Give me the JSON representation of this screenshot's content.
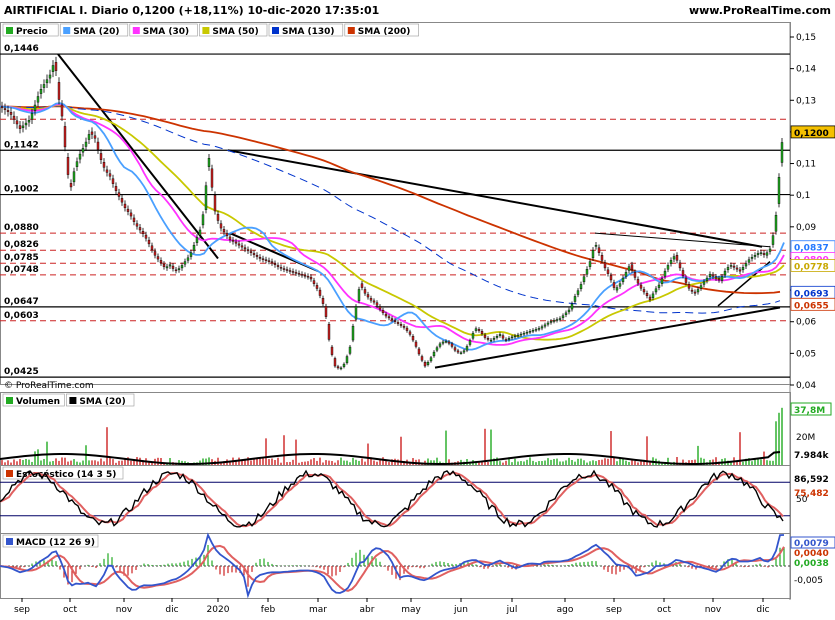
{
  "header": {
    "title": "AIRTIFICIAL I. Diario 0,1200 (+18,11%) 10-dic-2020 17:35:01",
    "site": "www.ProRealTime.com"
  },
  "watermark": "© ProRealTime.com",
  "legend_main": [
    {
      "label": "Precio",
      "color": "#22aa22"
    },
    {
      "label": "SMA (20)",
      "color": "#4aa0ff"
    },
    {
      "label": "SMA (30)",
      "color": "#ff33ff"
    },
    {
      "label": "SMA (50)",
      "color": "#c8c800"
    },
    {
      "label": "SMA (130)",
      "color": "#0033cc"
    },
    {
      "label": "SMA (200)",
      "color": "#cc3300"
    }
  ],
  "legend_volume": [
    {
      "label": "Volumen",
      "color": "#22aa22"
    },
    {
      "label": "SMA (20)",
      "color": "#000000"
    }
  ],
  "legend_stoch": [
    {
      "label": "Estocástico (14 3 5)",
      "color": "#cc3300"
    }
  ],
  "legend_macd": [
    {
      "label": "MACD (12 26 9)",
      "color": "#3355cc"
    }
  ],
  "chart_data": [
    {
      "type": "line",
      "panel": "price",
      "x_labels": [
        "sep",
        "oct",
        "nov",
        "dic",
        "2020",
        "feb",
        "mar",
        "abr",
        "may",
        "jun",
        "jul",
        "ago",
        "sep",
        "oct",
        "nov",
        "dic"
      ],
      "ylim": [
        0.04,
        0.155
      ],
      "yticks": [
        "0,15",
        "0,14",
        "0,13",
        "0,12",
        "0,11",
        "0,1",
        "0,09",
        "0,08",
        "0,07",
        "0,06",
        "0,05",
        "0,04"
      ],
      "level_labels": [
        "0,1446",
        "0,1142",
        "0,1002",
        "0,0880",
        "0,0826",
        "0,0785",
        "0,0748",
        "0,0647",
        "0,0603",
        "0,0425"
      ],
      "solid_levels": [
        0.1446,
        0.1142,
        0.1002,
        0.0647,
        0.0425
      ],
      "dashed_levels": [
        0.124,
        0.088,
        0.0826,
        0.0785,
        0.0748,
        0.0603
      ],
      "last_price": 0.12,
      "badges": [
        {
          "text": "0,1200",
          "value": 0.12,
          "color": "#f4c000",
          "fg": "#000000"
        },
        {
          "text": "0,0837",
          "value": 0.0837,
          "color": "#ffffff",
          "fg": "#2277ff"
        },
        {
          "text": "0,0800",
          "value": 0.08,
          "color": "#ffffff",
          "fg": "#ff33ff"
        },
        {
          "text": "0,0778",
          "value": 0.0778,
          "color": "#ffffff",
          "fg": "#c8a800"
        },
        {
          "text": "0,0693",
          "value": 0.0693,
          "color": "#ffffff",
          "fg": "#0033cc"
        },
        {
          "text": "0,0655",
          "value": 0.0655,
          "color": "#ffffff",
          "fg": "#cc3300"
        }
      ],
      "price_path": [
        [
          0,
          0.128
        ],
        [
          10,
          0.126
        ],
        [
          20,
          0.121
        ],
        [
          30,
          0.124
        ],
        [
          40,
          0.133
        ],
        [
          50,
          0.138
        ],
        [
          55,
          0.143
        ],
        [
          58,
          0.132
        ],
        [
          62,
          0.125
        ],
        [
          66,
          0.112
        ],
        [
          70,
          0.101
        ],
        [
          75,
          0.109
        ],
        [
          80,
          0.113
        ],
        [
          85,
          0.116
        ],
        [
          90,
          0.12
        ],
        [
          95,
          0.118
        ],
        [
          100,
          0.112
        ],
        [
          105,
          0.108
        ],
        [
          110,
          0.106
        ],
        [
          115,
          0.102
        ],
        [
          120,
          0.099
        ],
        [
          125,
          0.096
        ],
        [
          130,
          0.094
        ],
        [
          135,
          0.091
        ],
        [
          140,
          0.089
        ],
        [
          145,
          0.087
        ],
        [
          150,
          0.084
        ],
        [
          155,
          0.081
        ],
        [
          160,
          0.079
        ],
        [
          165,
          0.077
        ],
        [
          170,
          0.078
        ],
        [
          175,
          0.076
        ],
        [
          180,
          0.077
        ],
        [
          185,
          0.079
        ],
        [
          190,
          0.081
        ],
        [
          195,
          0.085
        ],
        [
          200,
          0.089
        ],
        [
          205,
          0.097
        ],
        [
          208,
          0.115
        ],
        [
          211,
          0.105
        ],
        [
          215,
          0.095
        ],
        [
          220,
          0.09
        ],
        [
          225,
          0.088
        ],
        [
          230,
          0.086
        ],
        [
          240,
          0.084
        ],
        [
          250,
          0.082
        ],
        [
          260,
          0.08
        ],
        [
          270,
          0.079
        ],
        [
          280,
          0.077
        ],
        [
          290,
          0.076
        ],
        [
          300,
          0.075
        ],
        [
          310,
          0.074
        ],
        [
          318,
          0.07
        ],
        [
          325,
          0.064
        ],
        [
          330,
          0.052
        ],
        [
          335,
          0.046
        ],
        [
          340,
          0.045
        ],
        [
          345,
          0.047
        ],
        [
          350,
          0.052
        ],
        [
          355,
          0.063
        ],
        [
          360,
          0.072
        ],
        [
          365,
          0.069
        ],
        [
          370,
          0.067
        ],
        [
          375,
          0.066
        ],
        [
          380,
          0.064
        ],
        [
          385,
          0.062
        ],
        [
          390,
          0.061
        ],
        [
          395,
          0.06
        ],
        [
          400,
          0.059
        ],
        [
          405,
          0.058
        ],
        [
          410,
          0.056
        ],
        [
          415,
          0.053
        ],
        [
          420,
          0.049
        ],
        [
          425,
          0.046
        ],
        [
          430,
          0.048
        ],
        [
          435,
          0.051
        ],
        [
          440,
          0.053
        ],
        [
          445,
          0.054
        ],
        [
          450,
          0.053
        ],
        [
          455,
          0.051
        ],
        [
          460,
          0.05
        ],
        [
          465,
          0.051
        ],
        [
          470,
          0.054
        ],
        [
          475,
          0.058
        ],
        [
          480,
          0.057
        ],
        [
          485,
          0.055
        ],
        [
          490,
          0.054
        ],
        [
          495,
          0.055
        ],
        [
          500,
          0.056
        ],
        [
          505,
          0.054
        ],
        [
          510,
          0.055
        ],
        [
          520,
          0.056
        ],
        [
          530,
          0.057
        ],
        [
          540,
          0.058
        ],
        [
          550,
          0.06
        ],
        [
          560,
          0.061
        ],
        [
          570,
          0.064
        ],
        [
          575,
          0.068
        ],
        [
          580,
          0.071
        ],
        [
          585,
          0.075
        ],
        [
          590,
          0.079
        ],
        [
          595,
          0.085
        ],
        [
          600,
          0.081
        ],
        [
          605,
          0.077
        ],
        [
          610,
          0.074
        ],
        [
          615,
          0.07
        ],
        [
          620,
          0.072
        ],
        [
          625,
          0.075
        ],
        [
          630,
          0.078
        ],
        [
          635,
          0.074
        ],
        [
          640,
          0.071
        ],
        [
          645,
          0.069
        ],
        [
          650,
          0.067
        ],
        [
          655,
          0.07
        ],
        [
          660,
          0.072
        ],
        [
          665,
          0.076
        ],
        [
          670,
          0.079
        ],
        [
          675,
          0.081
        ],
        [
          680,
          0.077
        ],
        [
          685,
          0.073
        ],
        [
          690,
          0.07
        ],
        [
          695,
          0.069
        ],
        [
          700,
          0.071
        ],
        [
          705,
          0.073
        ],
        [
          710,
          0.075
        ],
        [
          715,
          0.074
        ],
        [
          720,
          0.073
        ],
        [
          725,
          0.076
        ],
        [
          730,
          0.078
        ],
        [
          735,
          0.077
        ],
        [
          740,
          0.076
        ],
        [
          745,
          0.078
        ],
        [
          750,
          0.08
        ],
        [
          755,
          0.081
        ],
        [
          760,
          0.082
        ],
        [
          765,
          0.081
        ],
        [
          770,
          0.083
        ],
        [
          775,
          0.09
        ],
        [
          778,
          0.101
        ],
        [
          781,
          0.115
        ],
        [
          784,
          0.12
        ]
      ]
    },
    {
      "type": "bar",
      "panel": "volume",
      "last_volume": "37,8M",
      "volume_sma": "7.984k",
      "tick": "20M"
    },
    {
      "type": "line",
      "panel": "stochastic",
      "ylim": [
        0,
        100
      ],
      "values_labels": [
        "86,592",
        "75,482"
      ],
      "tick": "50"
    },
    {
      "type": "line",
      "panel": "macd",
      "values_labels": [
        "0,0079",
        "0,0040",
        "0,0038"
      ],
      "tick": "-0,005"
    }
  ]
}
